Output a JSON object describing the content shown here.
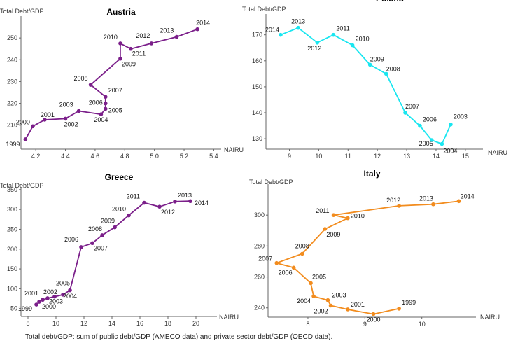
{
  "caption": "Total debt/GDP: sum of public debt/GDP (AMECO data) and private sector debt/GDP (OECD data).",
  "chart_data": [
    {
      "type": "line",
      "title": "Austria",
      "xlabel": "NAIRU",
      "ylabel": "Total Debt/GDP",
      "color": "#7b1f8a",
      "xlim": [
        4.1,
        5.45
      ],
      "ylim": [
        199,
        260
      ],
      "xticks": [
        4.2,
        4.4,
        4.6,
        4.8,
        5.0,
        5.2,
        5.4
      ],
      "yticks": [
        210,
        220,
        230,
        240,
        250
      ],
      "points": [
        {
          "label": "1999",
          "x": 4.13,
          "y": 203.5
        },
        {
          "label": "2000",
          "x": 4.18,
          "y": 209.5
        },
        {
          "label": "2001",
          "x": 4.26,
          "y": 212.5
        },
        {
          "label": "2002",
          "x": 4.4,
          "y": 213.0
        },
        {
          "label": "2003",
          "x": 4.49,
          "y": 216.5
        },
        {
          "label": "2004",
          "x": 4.64,
          "y": 215.0
        },
        {
          "label": "2005",
          "x": 4.67,
          "y": 217.5
        },
        {
          "label": "2006",
          "x": 4.67,
          "y": 220.0
        },
        {
          "label": "2007",
          "x": 4.67,
          "y": 223.0
        },
        {
          "label": "2008",
          "x": 4.57,
          "y": 228.5
        },
        {
          "label": "2009",
          "x": 4.77,
          "y": 240.5
        },
        {
          "label": "2010",
          "x": 4.77,
          "y": 247.5
        },
        {
          "label": "2011",
          "x": 4.84,
          "y": 245.0
        },
        {
          "label": "2012",
          "x": 4.98,
          "y": 247.5
        },
        {
          "label": "2013",
          "x": 5.15,
          "y": 250.5
        },
        {
          "label": "2014",
          "x": 5.29,
          "y": 254.0
        }
      ]
    },
    {
      "type": "line",
      "title": "Poland",
      "xlabel": "NAIRU",
      "ylabel": "Total Debt/GDP",
      "color": "#19e6f0",
      "xlim": [
        8.2,
        15.6
      ],
      "ylim": [
        126,
        178
      ],
      "xticks": [
        9,
        10,
        11,
        12,
        13,
        14,
        15
      ],
      "yticks": [
        130,
        140,
        150,
        160,
        170
      ],
      "points": [
        {
          "label": "2014",
          "x": 8.7,
          "y": 170.0
        },
        {
          "label": "2013",
          "x": 9.3,
          "y": 172.7
        },
        {
          "label": "2012",
          "x": 9.95,
          "y": 167.0
        },
        {
          "label": "2011",
          "x": 10.5,
          "y": 170.0
        },
        {
          "label": "2010",
          "x": 11.15,
          "y": 166.0
        },
        {
          "label": "2009",
          "x": 11.75,
          "y": 158.5
        },
        {
          "label": "2008",
          "x": 12.3,
          "y": 155.0
        },
        {
          "label": "2007",
          "x": 12.95,
          "y": 140.0
        },
        {
          "label": "2006",
          "x": 13.45,
          "y": 135.0
        },
        {
          "label": "2005",
          "x": 13.85,
          "y": 129.5
        },
        {
          "label": "2004",
          "x": 14.2,
          "y": 128.0
        },
        {
          "label": "2003",
          "x": 14.5,
          "y": 135.5
        }
      ]
    },
    {
      "type": "line",
      "title": "Greece",
      "xlabel": "NAIRU",
      "ylabel": "Total Debt/GDP",
      "color": "#7b1f8a",
      "xlim": [
        7.5,
        21.5
      ],
      "ylim": [
        30,
        355
      ],
      "xticks": [
        8,
        10,
        12,
        14,
        16,
        18,
        20
      ],
      "yticks": [
        50,
        100,
        150,
        200,
        250,
        300,
        350
      ],
      "points": [
        {
          "label": "1999",
          "x": 8.6,
          "y": 60
        },
        {
          "label": "2000",
          "x": 8.8,
          "y": 67
        },
        {
          "label": "2001",
          "x": 9.05,
          "y": 72
        },
        {
          "label": "2002",
          "x": 9.4,
          "y": 76
        },
        {
          "label": "2003",
          "x": 9.9,
          "y": 80
        },
        {
          "label": "2004",
          "x": 10.5,
          "y": 85
        },
        {
          "label": "2005",
          "x": 11.0,
          "y": 96
        },
        {
          "label": "2006",
          "x": 11.8,
          "y": 205
        },
        {
          "label": "2007",
          "x": 12.6,
          "y": 215
        },
        {
          "label": "2008",
          "x": 13.3,
          "y": 235
        },
        {
          "label": "2009",
          "x": 14.2,
          "y": 255
        },
        {
          "label": "2010",
          "x": 15.2,
          "y": 285
        },
        {
          "label": "2011",
          "x": 16.3,
          "y": 317
        },
        {
          "label": "2012",
          "x": 17.4,
          "y": 307
        },
        {
          "label": "2013",
          "x": 18.5,
          "y": 320
        },
        {
          "label": "2014",
          "x": 19.6,
          "y": 321
        }
      ]
    },
    {
      "type": "line",
      "title": "Italy",
      "xlabel": "NAIRU",
      "ylabel": "Total Debt/GDP",
      "color": "#f28c1e",
      "xlim": [
        7.3,
        10.95
      ],
      "ylim": [
        234,
        320
      ],
      "xticks": [
        8,
        9,
        10
      ],
      "yticks": [
        240,
        260,
        280,
        300
      ],
      "points": [
        {
          "label": "1999",
          "x": 9.6,
          "y": 239.5
        },
        {
          "label": "2000",
          "x": 9.15,
          "y": 236.0
        },
        {
          "label": "2001",
          "x": 8.7,
          "y": 239.0
        },
        {
          "label": "2002",
          "x": 8.4,
          "y": 241.5
        },
        {
          "label": "2003",
          "x": 8.35,
          "y": 245.0
        },
        {
          "label": "2004",
          "x": 8.1,
          "y": 247.5
        },
        {
          "label": "2005",
          "x": 8.05,
          "y": 256.0
        },
        {
          "label": "2006",
          "x": 7.75,
          "y": 266.0
        },
        {
          "label": "2007",
          "x": 7.45,
          "y": 269.0
        },
        {
          "label": "2008",
          "x": 7.9,
          "y": 275.0
        },
        {
          "label": "2009",
          "x": 8.3,
          "y": 291.0
        },
        {
          "label": "2010",
          "x": 8.7,
          "y": 298.0
        },
        {
          "label": "2011",
          "x": 8.45,
          "y": 300.0
        },
        {
          "label": "2012",
          "x": 9.6,
          "y": 306.0
        },
        {
          "label": "2013",
          "x": 10.2,
          "y": 307.0
        },
        {
          "label": "2014",
          "x": 10.65,
          "y": 309.0
        }
      ]
    }
  ]
}
